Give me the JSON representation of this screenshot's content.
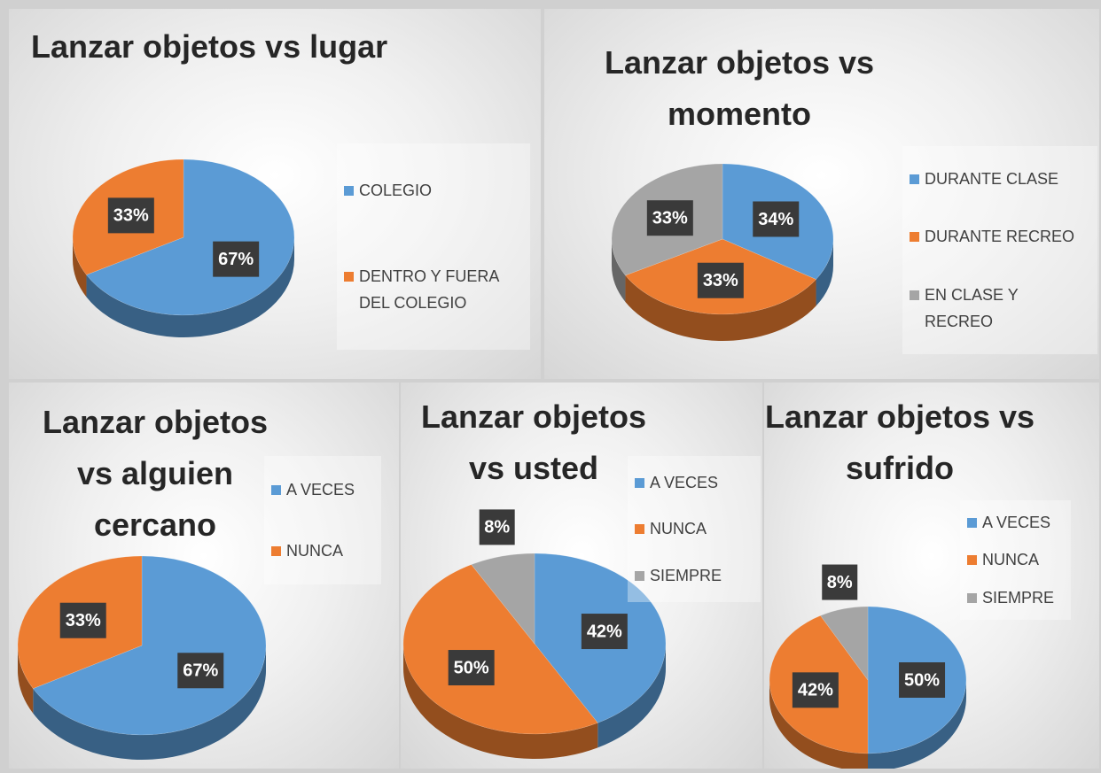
{
  "chart_data": [
    {
      "type": "pie",
      "title": "Lanzar objetos vs lugar",
      "categories": [
        "COLEGIO",
        "DENTRO Y FUERA DEL COLEGIO"
      ],
      "values": [
        67,
        33
      ],
      "value_labels": [
        "67%",
        "33%"
      ],
      "colors": [
        "#5b9bd5",
        "#ed7d31"
      ]
    },
    {
      "type": "pie",
      "title": "Lanzar objetos vs momento",
      "categories": [
        "DURANTE CLASE",
        "DURANTE RECREO",
        "EN CLASE Y RECREO"
      ],
      "values": [
        34,
        33,
        33
      ],
      "value_labels": [
        "34%",
        "33%",
        "33%"
      ],
      "colors": [
        "#5b9bd5",
        "#ed7d31",
        "#a5a5a5"
      ]
    },
    {
      "type": "pie",
      "title": "Lanzar objetos vs alguien cercano",
      "categories": [
        "A VECES",
        "NUNCA"
      ],
      "values": [
        67,
        33
      ],
      "value_labels": [
        "67%",
        "33%"
      ],
      "colors": [
        "#5b9bd5",
        "#ed7d31"
      ]
    },
    {
      "type": "pie",
      "title": "Lanzar objetos vs usted",
      "categories": [
        "A VECES",
        "NUNCA",
        "SIEMPRE"
      ],
      "values": [
        42,
        50,
        8
      ],
      "value_labels": [
        "42%",
        "50%",
        "8%"
      ],
      "colors": [
        "#5b9bd5",
        "#ed7d31",
        "#a5a5a5"
      ]
    },
    {
      "type": "pie",
      "title": "Lanzar objetos vs sufrido",
      "categories": [
        "A VECES",
        "NUNCA",
        "SIEMPRE"
      ],
      "values": [
        50,
        42,
        8
      ],
      "value_labels": [
        "50%",
        "42%",
        "8%"
      ],
      "colors": [
        "#5b9bd5",
        "#ed7d31",
        "#a5a5a5"
      ]
    }
  ]
}
